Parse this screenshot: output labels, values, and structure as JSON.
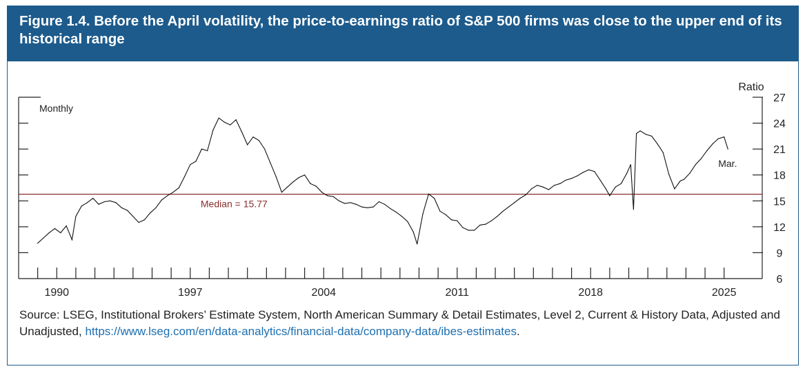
{
  "figure": {
    "title": "Figure 1.4. Before the April volatility, the price-to-earnings ratio of S&P 500 firms was close to the upper end of its historical range",
    "source_text": "Source: LSEG, Institutional Brokers’ Estimate System, North American Summary & Detail Estimates, Level 2, Current & History Data, Adjusted and Unadjusted, ",
    "source_link": "https://www.lseg.com/en/data-analytics/financial-data/company-data/ibes-estimates",
    "source_end": "."
  },
  "colors": {
    "header": "#1d5b8c",
    "series": "#111111",
    "median": "#8b2c2c",
    "link": "#1d6fb0"
  },
  "chart_data": {
    "type": "line",
    "title": "",
    "frequency_label": "Monthly",
    "ylabel": "Ratio",
    "xlabel": "",
    "xlim": [
      1988,
      2027
    ],
    "ylim": [
      6,
      27
    ],
    "y_ticks": [
      6,
      9,
      12,
      15,
      18,
      21,
      24,
      27
    ],
    "x_tick_labels": [
      1990,
      1997,
      2004,
      2011,
      2018,
      2025
    ],
    "median": {
      "value": 15.77,
      "label": "Median = 15.77"
    },
    "end_annotation": "Mar.",
    "series": [
      {
        "name": "S&P 500 price-to-earnings ratio",
        "x": [
          1989.0,
          1989.3,
          1989.6,
          1989.9,
          1990.2,
          1990.5,
          1990.8,
          1991.0,
          1991.3,
          1991.6,
          1991.9,
          1992.2,
          1992.5,
          1992.8,
          1993.1,
          1993.4,
          1993.7,
          1994.0,
          1994.3,
          1994.6,
          1994.9,
          1995.2,
          1995.5,
          1995.8,
          1996.1,
          1996.4,
          1996.7,
          1997.0,
          1997.3,
          1997.6,
          1997.9,
          1998.2,
          1998.5,
          1998.8,
          1999.1,
          1999.4,
          1999.7,
          2000.0,
          2000.3,
          2000.6,
          2000.9,
          2001.2,
          2001.5,
          2001.8,
          2002.1,
          2002.4,
          2002.7,
          2003.0,
          2003.3,
          2003.6,
          2003.9,
          2004.2,
          2004.5,
          2004.8,
          2005.1,
          2005.4,
          2005.7,
          2006.0,
          2006.3,
          2006.6,
          2006.9,
          2007.2,
          2007.5,
          2007.8,
          2008.1,
          2008.4,
          2008.7,
          2008.9,
          2009.2,
          2009.5,
          2009.8,
          2010.1,
          2010.4,
          2010.7,
          2011.0,
          2011.3,
          2011.6,
          2011.9,
          2012.2,
          2012.5,
          2012.8,
          2013.1,
          2013.4,
          2013.7,
          2014.0,
          2014.3,
          2014.6,
          2014.9,
          2015.2,
          2015.5,
          2015.8,
          2016.1,
          2016.4,
          2016.7,
          2017.0,
          2017.3,
          2017.6,
          2017.9,
          2018.2,
          2018.5,
          2018.8,
          2019.0,
          2019.3,
          2019.6,
          2019.9,
          2020.1,
          2020.25,
          2020.4,
          2020.6,
          2020.9,
          2021.2,
          2021.5,
          2021.8,
          2022.1,
          2022.4,
          2022.7,
          2022.9,
          2023.2,
          2023.5,
          2023.8,
          2024.1,
          2024.4,
          2024.7,
          2025.0,
          2025.2
        ],
        "values": [
          10.1,
          10.7,
          11.3,
          11.8,
          11.3,
          12.1,
          10.5,
          13.2,
          14.4,
          14.8,
          15.3,
          14.6,
          14.9,
          15.0,
          14.8,
          14.2,
          13.9,
          13.2,
          12.5,
          12.8,
          13.6,
          14.2,
          15.1,
          15.6,
          16.0,
          16.5,
          17.8,
          19.2,
          19.6,
          21.0,
          20.8,
          23.2,
          24.6,
          24.1,
          23.8,
          24.4,
          23.0,
          21.5,
          22.4,
          22.0,
          21.0,
          19.4,
          17.8,
          16.0,
          16.6,
          17.2,
          17.7,
          18.0,
          17.0,
          16.7,
          16.0,
          15.6,
          15.5,
          15.0,
          14.7,
          14.8,
          14.6,
          14.3,
          14.2,
          14.3,
          14.9,
          14.6,
          14.1,
          13.7,
          13.2,
          12.6,
          11.4,
          10.0,
          13.5,
          15.8,
          15.3,
          13.8,
          13.4,
          12.8,
          12.7,
          11.9,
          11.6,
          11.6,
          12.2,
          12.3,
          12.7,
          13.2,
          13.8,
          14.3,
          14.8,
          15.3,
          15.7,
          16.4,
          16.8,
          16.6,
          16.3,
          16.8,
          17.0,
          17.4,
          17.6,
          17.9,
          18.3,
          18.6,
          18.4,
          17.4,
          16.4,
          15.6,
          16.6,
          17.0,
          18.2,
          19.2,
          14.0,
          22.8,
          23.1,
          22.7,
          22.5,
          21.6,
          20.6,
          18.1,
          16.4,
          17.3,
          17.5,
          18.2,
          19.2,
          19.9,
          20.8,
          21.6,
          22.2,
          22.4,
          21.0
        ]
      }
    ]
  }
}
